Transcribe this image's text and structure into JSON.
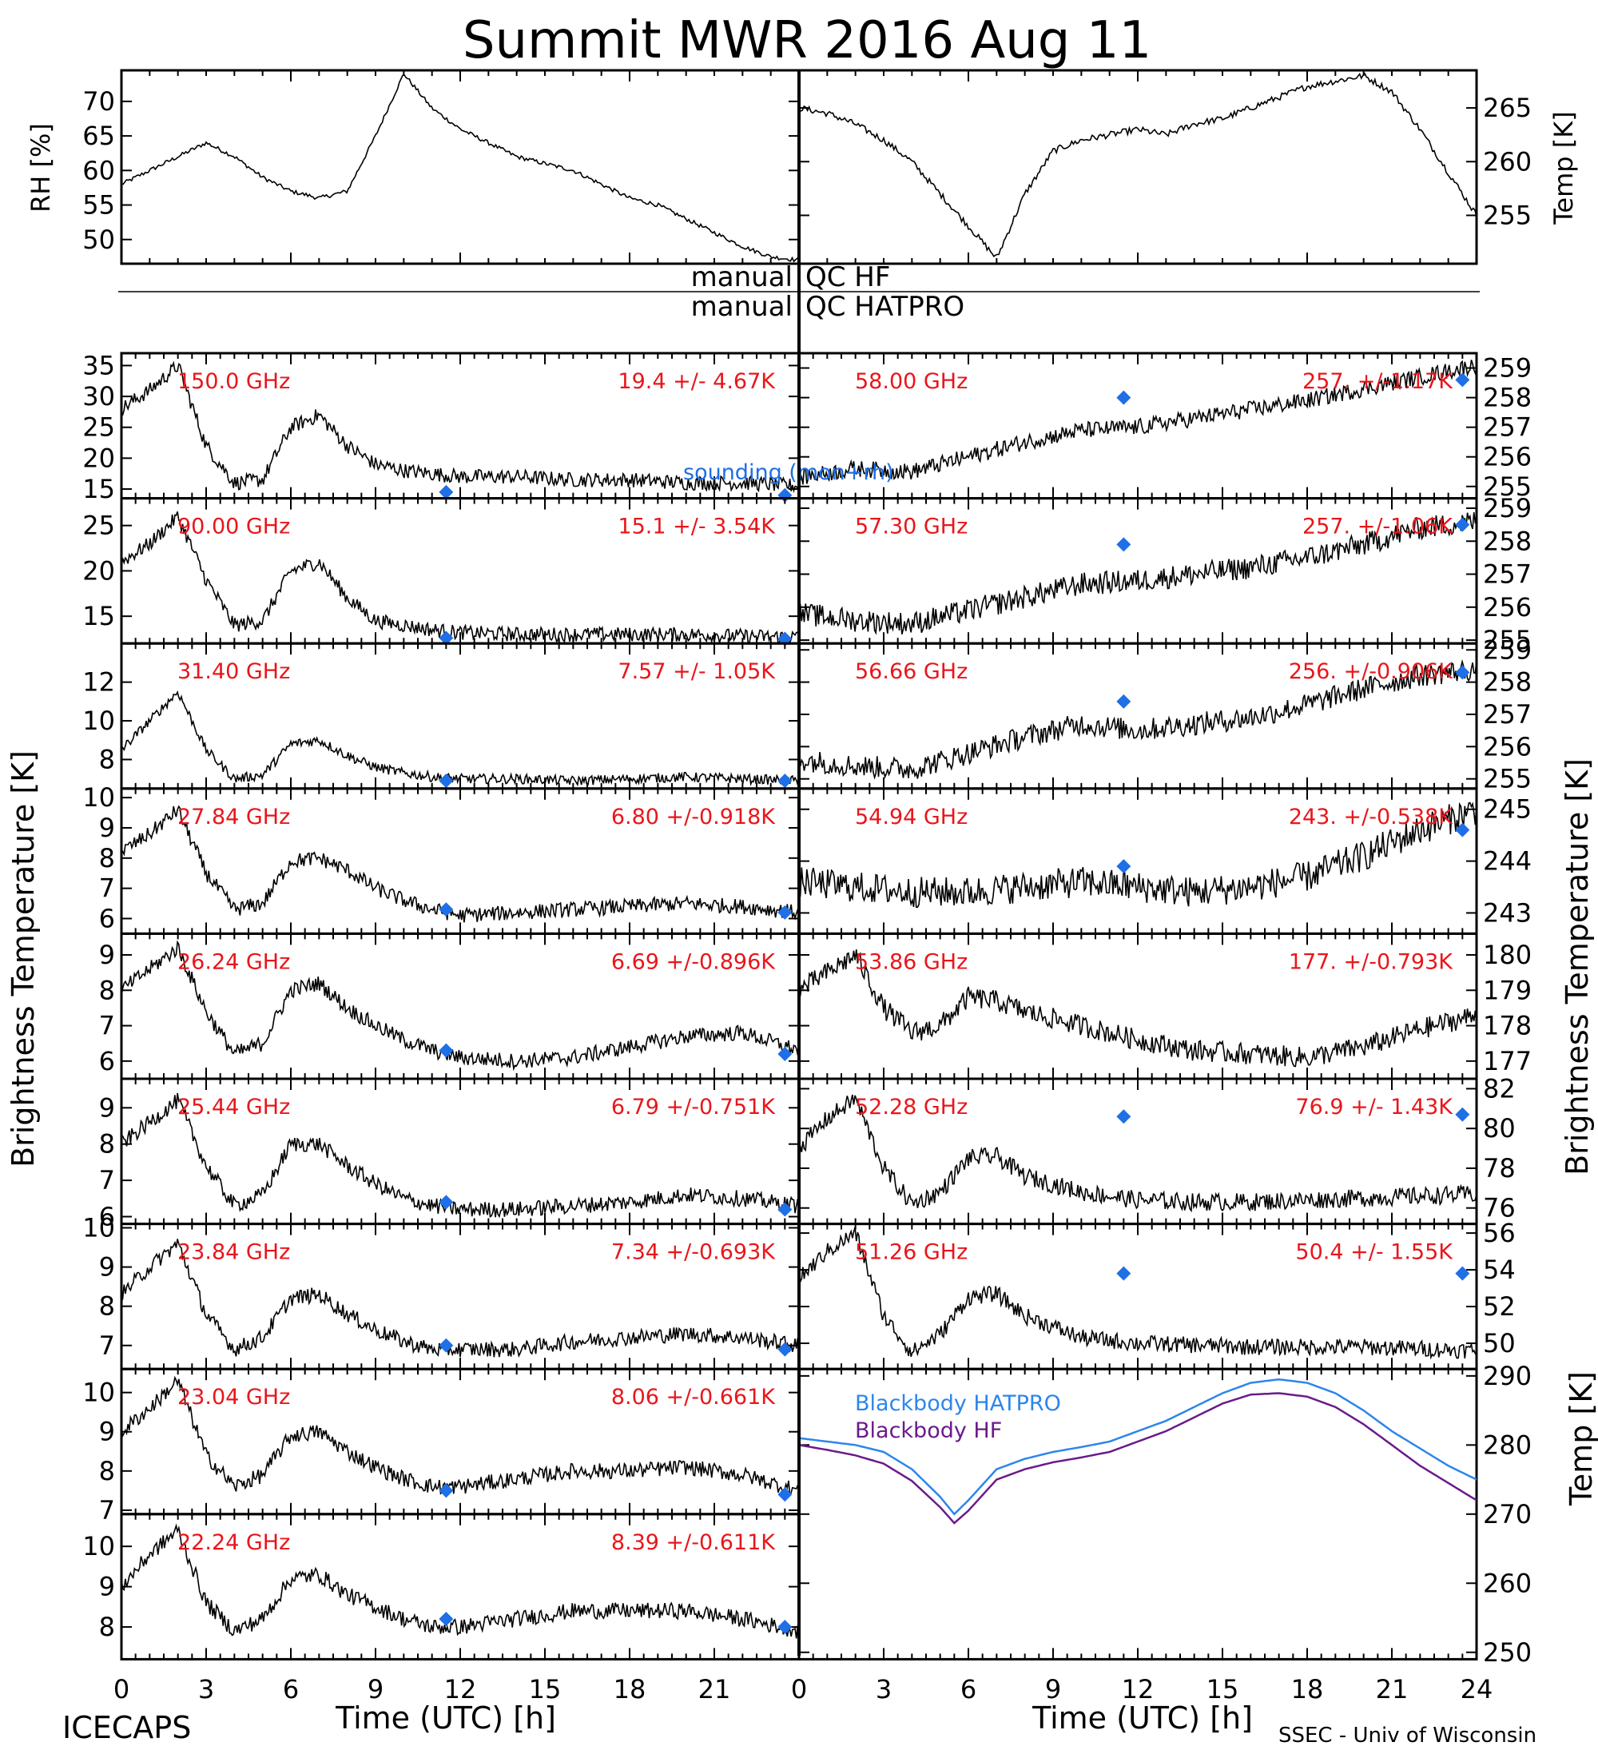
{
  "title": "Summit MWR 2016 Aug 11",
  "footer_left": "ICECAPS",
  "footer_right": "SSEC - Univ of Wisconsin",
  "xlabel": "Time (UTC) [h]",
  "left_ylabel": "Brightness Temperature [K]",
  "right_ylabel": "Brightness Temperature [K]",
  "qc": {
    "hf_left": "manual",
    "hf_right": "QC HF",
    "hatpro_left": "manual",
    "hatpro_right": "QC HATPRO"
  },
  "sounding_label": "sounding (mon+rh)",
  "colors": {
    "series": "#000000",
    "label": "#e8161b",
    "sounding": "#1f6fe6",
    "bb_hatpro": "#2d86ec",
    "bb_hf": "#6a1b8a"
  },
  "chart_data": [
    {
      "id": "rh",
      "type": "line",
      "ylabel": "RH [%]",
      "xlim": [
        0,
        12
      ],
      "ylim": [
        46.5,
        74.5
      ],
      "yticks": [
        50,
        55,
        60,
        65,
        70
      ],
      "x": [
        0,
        0.5,
        1,
        1.5,
        2,
        2.5,
        3,
        3.5,
        4,
        4.5,
        5,
        5.5,
        6,
        6.5,
        7,
        7.5,
        8,
        8.5,
        9,
        9.5,
        10,
        10.5,
        11,
        11.5,
        12
      ],
      "values": [
        58,
        60,
        62,
        64,
        62,
        59,
        57,
        56,
        57,
        65,
        74,
        69,
        66,
        64,
        62,
        61,
        60,
        58,
        56,
        55,
        53,
        51,
        49,
        47.5,
        47
      ]
    },
    {
      "id": "temp",
      "type": "line",
      "ylabel": "Temp [K]",
      "xlim": [
        12,
        24
      ],
      "ylim": [
        250.5,
        268.5
      ],
      "yticks": [
        255,
        260,
        265
      ],
      "x": [
        12,
        12.5,
        13,
        13.5,
        14,
        14.5,
        15,
        15.5,
        16,
        16.5,
        17,
        17.5,
        18,
        18.5,
        19,
        19.5,
        20,
        20.5,
        21,
        21.5,
        22,
        22.5,
        23,
        23.5,
        24
      ],
      "values": [
        265,
        264.5,
        263.5,
        262,
        260,
        257,
        254,
        251,
        257,
        261,
        262,
        262.5,
        263,
        262.5,
        263.5,
        264,
        265,
        266,
        267,
        267.5,
        268,
        266.5,
        263,
        259,
        255
      ]
    },
    {
      "id": "ch150",
      "type": "line",
      "col": 0,
      "row": 0,
      "freq": "150.0 GHz",
      "stat": "19.4 +/- 4.67K",
      "ylim": [
        13.5,
        37
      ],
      "yticks": [
        15,
        20,
        25,
        30,
        35
      ],
      "noise": 1.2,
      "x": [
        0,
        1,
        2,
        3,
        4,
        5,
        6,
        7,
        8,
        9,
        10,
        11,
        12,
        14,
        16,
        18,
        20,
        22,
        24
      ],
      "values": [
        28,
        31,
        35,
        22,
        16,
        16.5,
        25,
        27,
        22,
        19,
        18,
        17.5,
        17,
        17,
        16.5,
        16.5,
        16,
        16,
        15.5
      ],
      "sounding": [
        [
          11.5,
          14.5
        ],
        [
          23.5,
          14
        ]
      ]
    },
    {
      "id": "ch90",
      "type": "line",
      "col": 0,
      "row": 1,
      "freq": "90.00 GHz",
      "stat": "15.1 +/- 3.54K",
      "ylim": [
        12,
        28
      ],
      "yticks": [
        15,
        20,
        25
      ],
      "noise": 0.8,
      "x": [
        0,
        1,
        2,
        3,
        4,
        5,
        6,
        7,
        8,
        9,
        10,
        11,
        12,
        14,
        16,
        18,
        20,
        22,
        24
      ],
      "values": [
        21,
        23,
        26,
        19,
        14,
        14.5,
        20,
        21,
        17,
        14.5,
        14,
        13.5,
        13.2,
        13,
        13,
        13,
        13,
        12.8,
        12.7
      ],
      "sounding": [
        [
          11.5,
          12.6
        ],
        [
          23.5,
          12.5
        ]
      ]
    },
    {
      "id": "ch3140",
      "type": "line",
      "col": 0,
      "row": 2,
      "freq": "31.40 GHz",
      "stat": "7.57 +/- 1.05K",
      "ylim": [
        6.5,
        14
      ],
      "yticks": [
        8,
        10,
        12
      ],
      "noise": 0.25,
      "x": [
        0,
        1,
        2,
        3,
        4,
        5,
        6,
        7,
        8,
        9,
        10,
        11,
        12,
        14,
        16,
        18,
        20,
        22,
        24
      ],
      "values": [
        8.5,
        10,
        11.5,
        8.5,
        7,
        7.2,
        8.8,
        9,
        8.2,
        7.6,
        7.3,
        7.1,
        7,
        7,
        6.9,
        7,
        7.1,
        7,
        6.9
      ],
      "sounding": [
        [
          11.5,
          6.9
        ],
        [
          23.5,
          6.9
        ]
      ]
    },
    {
      "id": "ch2784",
      "type": "line",
      "col": 0,
      "row": 3,
      "freq": "27.84 GHz",
      "stat": "6.80 +/-0.918K",
      "ylim": [
        5.5,
        10.3
      ],
      "yticks": [
        6,
        7,
        8,
        9,
        10
      ],
      "noise": 0.25,
      "x": [
        0,
        1,
        2,
        3,
        4,
        5,
        6,
        7,
        8,
        9,
        10,
        11,
        12,
        14,
        16,
        18,
        20,
        22,
        24
      ],
      "values": [
        8.2,
        8.8,
        9.6,
        7.5,
        6.3,
        6.5,
        7.9,
        8,
        7.6,
        7,
        6.6,
        6.3,
        6.1,
        6.2,
        6.3,
        6.4,
        6.5,
        6.4,
        6.2
      ],
      "sounding": [
        [
          11.5,
          6.3
        ],
        [
          23.5,
          6.2
        ]
      ]
    },
    {
      "id": "ch2624",
      "type": "line",
      "col": 0,
      "row": 4,
      "freq": "26.24 GHz",
      "stat": "6.69 +/-0.896K",
      "ylim": [
        5.5,
        9.6
      ],
      "yticks": [
        6,
        7,
        8,
        9
      ],
      "noise": 0.22,
      "x": [
        0,
        1,
        2,
        3,
        4,
        5,
        6,
        7,
        8,
        9,
        10,
        11,
        12,
        14,
        16,
        18,
        20,
        22,
        24
      ],
      "values": [
        8,
        8.6,
        9.2,
        7.4,
        6.2,
        6.5,
        8,
        8.2,
        7.5,
        7,
        6.6,
        6.3,
        6.1,
        6,
        6.1,
        6.4,
        6.7,
        6.8,
        6.3
      ],
      "sounding": [
        [
          11.5,
          6.3
        ],
        [
          23.5,
          6.2
        ]
      ]
    },
    {
      "id": "ch2544",
      "type": "line",
      "col": 0,
      "row": 5,
      "freq": "25.44 GHz",
      "stat": "6.79 +/-0.751K",
      "ylim": [
        5.8,
        9.8
      ],
      "yticks": [
        6,
        7,
        8,
        9
      ],
      "noise": 0.22,
      "x": [
        0,
        1,
        2,
        3,
        4,
        5,
        6,
        7,
        8,
        9,
        10,
        11,
        12,
        14,
        16,
        18,
        20,
        22,
        24
      ],
      "values": [
        8,
        8.6,
        9.2,
        7.4,
        6.3,
        6.6,
        8,
        8,
        7.4,
        6.9,
        6.5,
        6.3,
        6.2,
        6.2,
        6.3,
        6.4,
        6.6,
        6.5,
        6.3
      ],
      "sounding": [
        [
          11.5,
          6.4
        ],
        [
          23.5,
          6.2
        ]
      ]
    },
    {
      "id": "ch2384",
      "type": "line",
      "col": 0,
      "row": 6,
      "freq": "23.84 GHz",
      "stat": "7.34 +/-0.693K",
      "ylim": [
        6.4,
        10.1
      ],
      "yticks": [
        7,
        8,
        9,
        10
      ],
      "noise": 0.2,
      "x": [
        0,
        1,
        2,
        3,
        4,
        5,
        6,
        7,
        8,
        9,
        10,
        11,
        12,
        14,
        16,
        18,
        20,
        22,
        24
      ],
      "values": [
        8.3,
        9,
        9.6,
        7.8,
        6.9,
        7.2,
        8.2,
        8.3,
        7.8,
        7.4,
        7.1,
        6.9,
        6.9,
        6.9,
        7.1,
        7.2,
        7.3,
        7.2,
        7
      ],
      "sounding": [
        [
          11.5,
          7
        ],
        [
          23.5,
          6.9
        ]
      ]
    },
    {
      "id": "ch2304",
      "type": "line",
      "col": 0,
      "row": 7,
      "freq": "23.04 GHz",
      "stat": "8.06 +/-0.661K",
      "ylim": [
        6.9,
        10.6
      ],
      "yticks": [
        7,
        8,
        9,
        10
      ],
      "noise": 0.2,
      "x": [
        0,
        1,
        2,
        3,
        4,
        5,
        6,
        7,
        8,
        9,
        10,
        11,
        12,
        14,
        16,
        18,
        20,
        22,
        24
      ],
      "values": [
        9,
        9.6,
        10.3,
        8.4,
        7.6,
        7.9,
        8.9,
        9,
        8.5,
        8.1,
        7.8,
        7.6,
        7.6,
        7.8,
        8,
        8,
        8.1,
        7.9,
        7.5
      ],
      "sounding": [
        [
          11.5,
          7.5
        ],
        [
          23.5,
          7.4
        ]
      ]
    },
    {
      "id": "ch2224",
      "type": "line",
      "col": 0,
      "row": 8,
      "freq": "22.24 GHz",
      "stat": "8.39 +/-0.611K",
      "ylim": [
        7.2,
        10.8
      ],
      "yticks": [
        8,
        9,
        10
      ],
      "noise": 0.2,
      "x": [
        0,
        1,
        2,
        3,
        4,
        5,
        6,
        7,
        8,
        9,
        10,
        11,
        12,
        14,
        16,
        18,
        20,
        22,
        24
      ],
      "values": [
        9,
        9.8,
        10.4,
        8.6,
        7.9,
        8.2,
        9.2,
        9.3,
        8.8,
        8.5,
        8.2,
        8,
        8,
        8.2,
        8.4,
        8.4,
        8.4,
        8.2,
        7.9
      ],
      "sounding": [
        [
          11.5,
          8.2
        ],
        [
          23.5,
          8
        ]
      ]
    },
    {
      "id": "ch5800",
      "type": "line",
      "col": 1,
      "row": 0,
      "freq": "58.00 GHz",
      "stat": "257. +/-1.17K",
      "ylim": [
        254.6,
        259.5
      ],
      "yticks": [
        255,
        256,
        257,
        258,
        259
      ],
      "noise": 0.28,
      "x": [
        0,
        2,
        4,
        6,
        8,
        10,
        12,
        14,
        16,
        18,
        20,
        22,
        24
      ],
      "values": [
        255.3,
        255.6,
        255.5,
        256,
        256.5,
        256.9,
        257,
        257.3,
        257.6,
        257.9,
        258.3,
        258.7,
        259.1
      ],
      "sounding": [
        [
          11.5,
          258
        ],
        [
          23.5,
          258.6
        ]
      ]
    },
    {
      "id": "ch5730",
      "type": "line",
      "col": 1,
      "row": 1,
      "freq": "57.30 GHz",
      "stat": "257. +/-1.06K",
      "ylim": [
        254.9,
        259.3
      ],
      "yticks": [
        255,
        256,
        257,
        258,
        259
      ],
      "noise": 0.35,
      "x": [
        0,
        2,
        4,
        6,
        8,
        10,
        12,
        14,
        16,
        18,
        20,
        22,
        24
      ],
      "values": [
        255.8,
        255.6,
        255.5,
        255.9,
        256.3,
        256.7,
        256.8,
        257,
        257.2,
        257.5,
        257.9,
        258.4,
        258.6
      ],
      "sounding": [
        [
          11.5,
          257.9
        ],
        [
          23.5,
          258.5
        ]
      ]
    },
    {
      "id": "ch5666",
      "type": "line",
      "col": 1,
      "row": 2,
      "freq": "56.66 GHz",
      "stat": "256. +/-0.906K",
      "ylim": [
        254.7,
        259.2
      ],
      "yticks": [
        255,
        256,
        257,
        258,
        259
      ],
      "noise": 0.35,
      "x": [
        0,
        2,
        4,
        6,
        8,
        10,
        12,
        14,
        16,
        18,
        20,
        22,
        24
      ],
      "values": [
        255.6,
        255.4,
        255.3,
        255.8,
        256.3,
        256.7,
        256.5,
        256.7,
        256.9,
        257.3,
        257.8,
        258.2,
        258.4
      ],
      "sounding": [
        [
          11.5,
          257.4
        ],
        [
          23.5,
          258.3
        ]
      ]
    },
    {
      "id": "ch5494",
      "type": "line",
      "col": 1,
      "row": 3,
      "freq": "54.94 GHz",
      "stat": "243. +/-0.538K",
      "ylim": [
        242.6,
        245.4
      ],
      "yticks": [
        243,
        244,
        245
      ],
      "noise": 0.3,
      "x": [
        0,
        2,
        4,
        6,
        8,
        10,
        12,
        14,
        16,
        18,
        20,
        22,
        24
      ],
      "values": [
        243.6,
        243.5,
        243.4,
        243.4,
        243.5,
        243.6,
        243.5,
        243.4,
        243.5,
        243.7,
        244.1,
        244.6,
        245
      ],
      "sounding": [
        [
          11.5,
          243.9
        ],
        [
          23.5,
          244.6
        ]
      ]
    },
    {
      "id": "ch5386",
      "type": "line",
      "col": 1,
      "row": 4,
      "freq": "53.86 GHz",
      "stat": "177. +/-0.793K",
      "ylim": [
        176.5,
        180.6
      ],
      "yticks": [
        177,
        178,
        179,
        180
      ],
      "noise": 0.3,
      "x": [
        0,
        1,
        2,
        3,
        4,
        5,
        6,
        7,
        8,
        10,
        12,
        14,
        16,
        18,
        20,
        22,
        24
      ],
      "values": [
        179,
        179.5,
        180,
        178.5,
        177.8,
        178,
        178.8,
        178.7,
        178.4,
        178,
        177.6,
        177.3,
        177.2,
        177.1,
        177.4,
        177.9,
        178.3
      ],
      "sounding": []
    },
    {
      "id": "ch5228",
      "type": "line",
      "col": 1,
      "row": 5,
      "freq": "52.28 GHz",
      "stat": "76.9 +/- 1.43K",
      "ylim": [
        75.2,
        82.5
      ],
      "yticks": [
        76,
        78,
        80,
        82
      ],
      "noise": 0.45,
      "x": [
        0,
        1,
        2,
        3,
        4,
        5,
        6,
        7,
        8,
        10,
        12,
        14,
        16,
        18,
        20,
        22,
        24
      ],
      "values": [
        79,
        80.5,
        81.5,
        78,
        76.2,
        76.8,
        78.5,
        78.6,
        77.6,
        76.8,
        76.4,
        76.3,
        76.3,
        76.4,
        76.5,
        76.6,
        76.7
      ],
      "sounding": [
        [
          11.5,
          80.6
        ],
        [
          23.5,
          80.7
        ]
      ]
    },
    {
      "id": "ch5126",
      "type": "line",
      "col": 1,
      "row": 6,
      "freq": "51.26 GHz",
      "stat": "50.4 +/- 1.55K",
      "ylim": [
        48.6,
        56.5
      ],
      "yticks": [
        50,
        52,
        54,
        56
      ],
      "noise": 0.45,
      "x": [
        0,
        1,
        2,
        3,
        4,
        5,
        6,
        7,
        8,
        10,
        12,
        14,
        16,
        18,
        20,
        22,
        24
      ],
      "values": [
        53.5,
        55,
        56,
        51.5,
        49.5,
        50.5,
        52.5,
        52.7,
        51.5,
        50.3,
        50,
        49.9,
        49.8,
        49.8,
        49.8,
        49.7,
        49.6
      ],
      "sounding": [
        [
          11.5,
          53.8
        ],
        [
          23.5,
          53.8
        ]
      ]
    },
    {
      "id": "blackbody",
      "type": "line",
      "ylabel": "Temp [K]",
      "xlim": [
        0,
        24
      ],
      "ylim": [
        249,
        291
      ],
      "yticks": [
        250,
        260,
        270,
        280,
        290
      ],
      "series": [
        {
          "name": "Blackbody HATPRO",
          "x": [
            0,
            1,
            2,
            3,
            4,
            5,
            5.5,
            6,
            7,
            8,
            9,
            10,
            11,
            12,
            13,
            14,
            15,
            16,
            17,
            18,
            19,
            20,
            21,
            22,
            23,
            24
          ],
          "values": [
            281,
            280.5,
            280,
            279,
            276.5,
            272.5,
            270,
            272,
            276.5,
            278,
            279,
            279.7,
            280.5,
            282,
            283.5,
            285.5,
            287.5,
            289,
            289.5,
            289,
            287.5,
            285,
            282,
            279.5,
            277,
            275
          ]
        },
        {
          "name": "Blackbody HF",
          "x": [
            0,
            1,
            2,
            3,
            4,
            5,
            5.5,
            6,
            7,
            8,
            9,
            10,
            11,
            12,
            13,
            14,
            15,
            16,
            17,
            18,
            19,
            20,
            21,
            22,
            23,
            24
          ],
          "values": [
            280,
            279.3,
            278.5,
            277.3,
            274.8,
            271,
            268.7,
            270.5,
            275,
            276.5,
            277.5,
            278.2,
            279,
            280.5,
            282,
            284,
            286,
            287.3,
            287.5,
            287,
            285.5,
            283,
            280,
            277,
            274.5,
            272
          ]
        }
      ]
    }
  ],
  "xticks": [
    "0",
    "3",
    "6",
    "9",
    "12",
    "15",
    "18",
    "21",
    "24"
  ]
}
